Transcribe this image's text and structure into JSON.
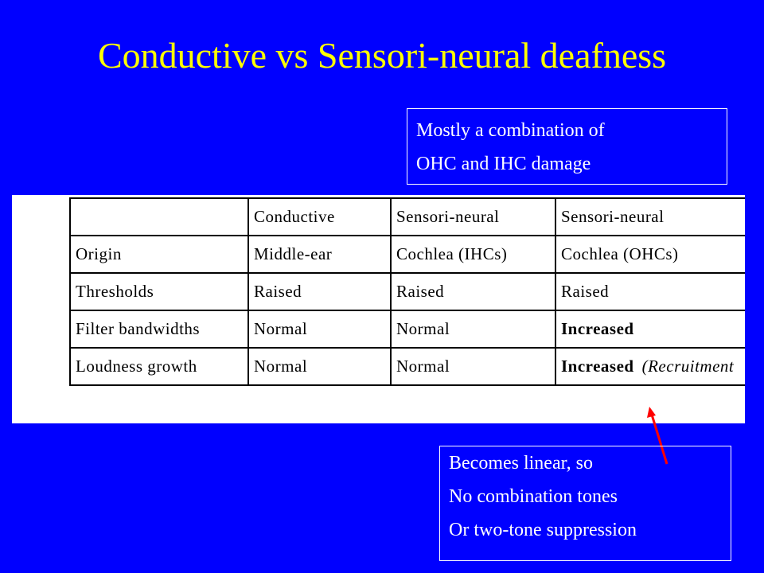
{
  "title": "Conductive vs Sensori-neural deafness",
  "note_top": {
    "line1": "Mostly a combination of",
    "line2": "OHC and IHC damage"
  },
  "table": {
    "headers": [
      "",
      "Conductive",
      "Sensori-neural",
      "Sensori-neural"
    ],
    "rows": [
      {
        "label": "Origin",
        "c1": "Middle-ear",
        "c2": "Cochlea (IHCs)",
        "c3": "Cochlea (OHCs)"
      },
      {
        "label": "Thresholds",
        "c1": "Raised",
        "c2": "Raised",
        "c3": "Raised"
      },
      {
        "label": "Filter bandwidths",
        "c1": "Normal",
        "c2": "Normal",
        "c3": "Increased"
      },
      {
        "label": "Loudness growth",
        "c1": "Normal",
        "c2": "Normal",
        "c3": "Increased",
        "c3_note": "(Recruitment"
      }
    ]
  },
  "note_bottom": {
    "line1": "Becomes linear, so",
    "line2": "No combination tones",
    "line3": "Or two-tone suppression"
  },
  "colors": {
    "background": "#0000ff",
    "title": "#ffff00",
    "arrow": "#ff0000"
  }
}
